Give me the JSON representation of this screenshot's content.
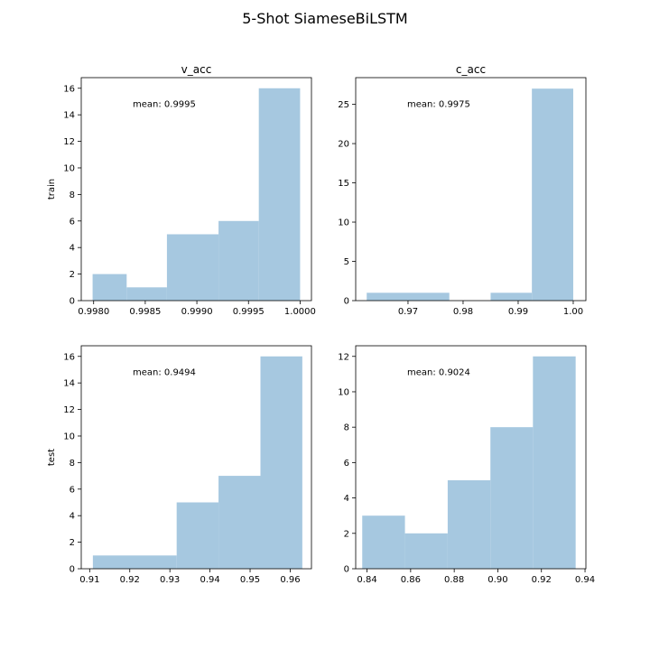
{
  "figure": {
    "title": "5-Shot SiameseBiLSTM"
  },
  "chart_data": [
    {
      "type": "bar",
      "title": "v_acc",
      "ylabel": "train",
      "annotation": "mean: 0.9995",
      "bar_color": "#a6c8e0",
      "xlim": [
        0.99788,
        1.00011
      ],
      "ylim": [
        0,
        16.8
      ],
      "xticks": [
        "0.9980",
        "0.9985",
        "0.9990",
        "0.9995",
        "1.0000"
      ],
      "xtick_values": [
        0.998,
        0.9985,
        0.999,
        0.9995,
        1.0
      ],
      "yticks": [
        0,
        2,
        4,
        6,
        8,
        10,
        12,
        14,
        16
      ],
      "bins": [
        {
          "start": 0.99799,
          "end": 0.99832,
          "count": 2
        },
        {
          "start": 0.99832,
          "end": 0.99871,
          "count": 1
        },
        {
          "start": 0.99871,
          "end": 0.99921,
          "count": 5
        },
        {
          "start": 0.99921,
          "end": 0.9996,
          "count": 6
        },
        {
          "start": 0.9996,
          "end": 1.0,
          "count": 16
        }
      ]
    },
    {
      "type": "bar",
      "title": "c_acc",
      "ylabel": "",
      "annotation": "mean: 0.9975",
      "bar_color": "#a6c8e0",
      "xlim": [
        0.9605,
        1.0023
      ],
      "ylim": [
        0,
        28.4
      ],
      "xticks": [
        "0.97",
        "0.98",
        "0.99",
        "1.00"
      ],
      "xtick_values": [
        0.97,
        0.98,
        0.99,
        1.0
      ],
      "yticks": [
        0,
        5,
        10,
        15,
        20,
        25
      ],
      "bins": [
        {
          "start": 0.9625,
          "end": 0.9775,
          "count": 1
        },
        {
          "start": 0.9775,
          "end": 0.985,
          "count": 0
        },
        {
          "start": 0.985,
          "end": 0.99249,
          "count": 1
        },
        {
          "start": 0.99249,
          "end": 1.0,
          "count": 27
        }
      ]
    },
    {
      "type": "bar",
      "title": "",
      "ylabel": "test",
      "annotation": "mean: 0.9494",
      "bar_color": "#a6c8e0",
      "xlim": [
        0.9079,
        0.9653
      ],
      "ylim": [
        0,
        16.8
      ],
      "xticks": [
        "0.91",
        "0.92",
        "0.93",
        "0.94",
        "0.95",
        "0.96"
      ],
      "xtick_values": [
        0.91,
        0.92,
        0.93,
        0.94,
        0.95,
        0.96
      ],
      "yticks": [
        0,
        2,
        4,
        6,
        8,
        10,
        12,
        14,
        16
      ],
      "bins": [
        {
          "start": 0.9108,
          "end": 0.93169,
          "count": 1
        },
        {
          "start": 0.93169,
          "end": 0.94213,
          "count": 5
        },
        {
          "start": 0.94213,
          "end": 0.95258,
          "count": 7
        },
        {
          "start": 0.95258,
          "end": 0.96302,
          "count": 16
        }
      ]
    },
    {
      "type": "bar",
      "title": "",
      "ylabel": "",
      "annotation": "mean: 0.9024",
      "bar_color": "#a6c8e0",
      "xlim": [
        0.8348,
        0.9404
      ],
      "ylim": [
        0,
        12.6
      ],
      "xticks": [
        "0.84",
        "0.86",
        "0.88",
        "0.90",
        "0.92",
        "0.94"
      ],
      "xtick_values": [
        0.84,
        0.86,
        0.88,
        0.9,
        0.92,
        0.94
      ],
      "yticks": [
        0,
        2,
        4,
        6,
        8,
        10,
        12
      ],
      "bins": [
        {
          "start": 0.8378,
          "end": 0.8574,
          "count": 3
        },
        {
          "start": 0.8574,
          "end": 0.877,
          "count": 2
        },
        {
          "start": 0.877,
          "end": 0.8966,
          "count": 5
        },
        {
          "start": 0.8966,
          "end": 0.9161,
          "count": 8
        },
        {
          "start": 0.9161,
          "end": 0.9357,
          "count": 12
        }
      ]
    }
  ]
}
